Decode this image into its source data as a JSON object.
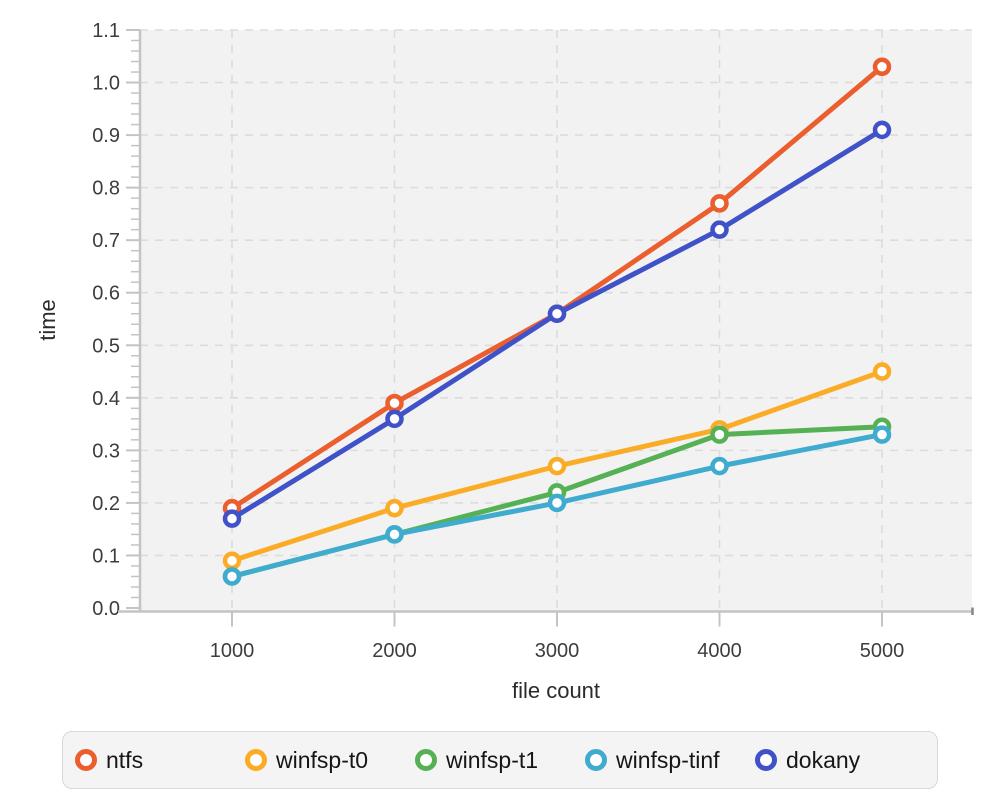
{
  "chart_data": {
    "type": "line",
    "x": [
      1000,
      2000,
      3000,
      4000,
      5000
    ],
    "xlabel": "file count",
    "ylabel": "time",
    "ylim": [
      0.0,
      1.1
    ],
    "ytick_step": 0.1,
    "yminor_step": 0.02,
    "grid": true,
    "grid_style": "dashed",
    "legend_position": "bottom",
    "plot_bg_color": "#f2f2f3",
    "grid_color": "#dcdcdc",
    "axis_color": "#c4c4c6",
    "series": [
      {
        "name": "ntfs",
        "color": "#EB5E2E",
        "values": [
          0.19,
          0.39,
          0.56,
          0.77,
          1.03
        ]
      },
      {
        "name": "winfsp-t0",
        "color": "#FBAC27",
        "values": [
          0.09,
          0.19,
          0.27,
          0.34,
          0.45
        ]
      },
      {
        "name": "winfsp-t1",
        "color": "#55B154",
        "values": [
          0.06,
          0.14,
          0.22,
          0.33,
          0.345
        ]
      },
      {
        "name": "winfsp-tinf",
        "color": "#3FABCE",
        "values": [
          0.06,
          0.14,
          0.2,
          0.27,
          0.33
        ]
      },
      {
        "name": "dokany",
        "color": "#4052C7",
        "values": [
          0.17,
          0.36,
          0.56,
          0.72,
          0.91
        ]
      }
    ]
  }
}
